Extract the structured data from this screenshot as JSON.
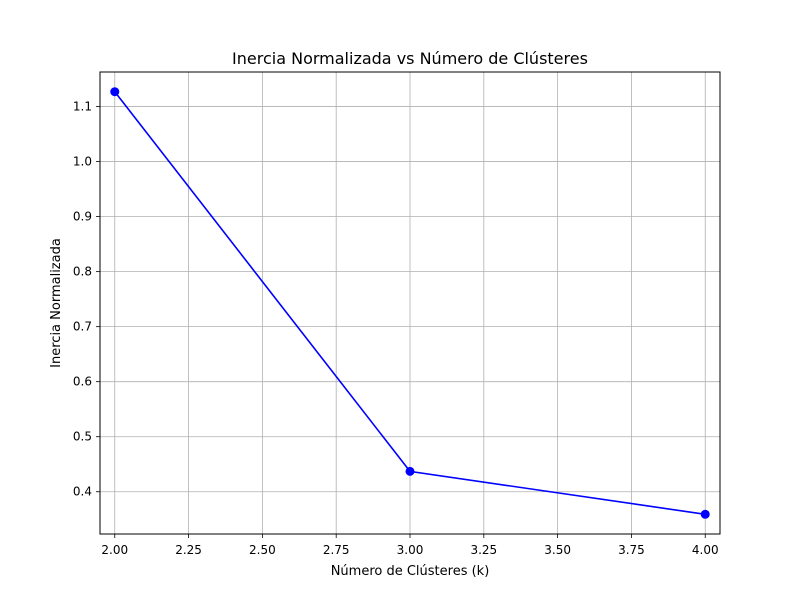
{
  "chart_data": {
    "type": "line",
    "title": "Inercia Normalizada vs Número de Clústeres",
    "xlabel": "Número de Clústeres (k)",
    "ylabel": "Inercia Normalizada",
    "x": [
      2,
      3,
      4
    ],
    "series": [
      {
        "values": [
          1.127,
          0.437,
          0.359
        ],
        "color": "#0000ff",
        "marker": "circle"
      }
    ],
    "xlim": [
      1.95,
      4.05
    ],
    "ylim": [
      0.3232,
      1.1628
    ],
    "xticks": [
      2.0,
      2.25,
      2.5,
      2.75,
      3.0,
      3.25,
      3.5,
      3.75,
      4.0
    ],
    "xtick_labels": [
      "2.00",
      "2.25",
      "2.50",
      "2.75",
      "3.00",
      "3.25",
      "3.50",
      "3.75",
      "4.00"
    ],
    "yticks": [
      0.4,
      0.5,
      0.6,
      0.7,
      0.8,
      0.9,
      1.0,
      1.1
    ],
    "ytick_labels": [
      "0.4",
      "0.5",
      "0.6",
      "0.7",
      "0.8",
      "0.9",
      "1.0",
      "1.1"
    ],
    "grid": true,
    "grid_color": "#b0b0b0"
  }
}
